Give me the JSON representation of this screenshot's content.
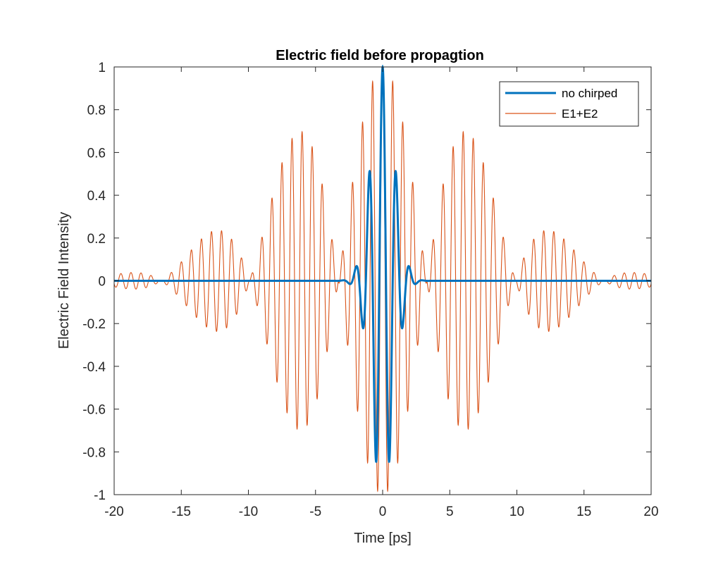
{
  "chart_data": {
    "type": "line",
    "title": "Electric field before propagtion",
    "xlabel": "Time [ps]",
    "ylabel": "Electric Field Intensity",
    "xlim": [
      -20,
      20
    ],
    "ylim": [
      -1,
      1
    ],
    "xticks": [
      "-20",
      "-15",
      "-10",
      "-5",
      "0",
      "5",
      "10",
      "15",
      "20"
    ],
    "yticks": [
      "1",
      "0.8",
      "0.6",
      "0.4",
      "0.2",
      "0",
      "-0.2",
      "-0.4",
      "-0.6",
      "-0.8",
      "-1"
    ],
    "grid": false,
    "legend_position": "top-right",
    "series": [
      {
        "name": "no chirped",
        "color": "#0072BD",
        "model": "gaussian-carrier",
        "amplitude": 1.0,
        "gaussian_sigma_ps": 0.85,
        "carrier_period_ps": 1.0,
        "x_range": [
          -20,
          20
        ]
      },
      {
        "name": "E1+E2",
        "color": "#D95319",
        "model": "beat-gaussian",
        "amplitude": 1.0,
        "gaussian_sigma_ps": 7.5,
        "carrier_period_ps": 0.75,
        "beat_period_ps": 6.6,
        "x_range": [
          -20,
          20
        ]
      }
    ]
  }
}
